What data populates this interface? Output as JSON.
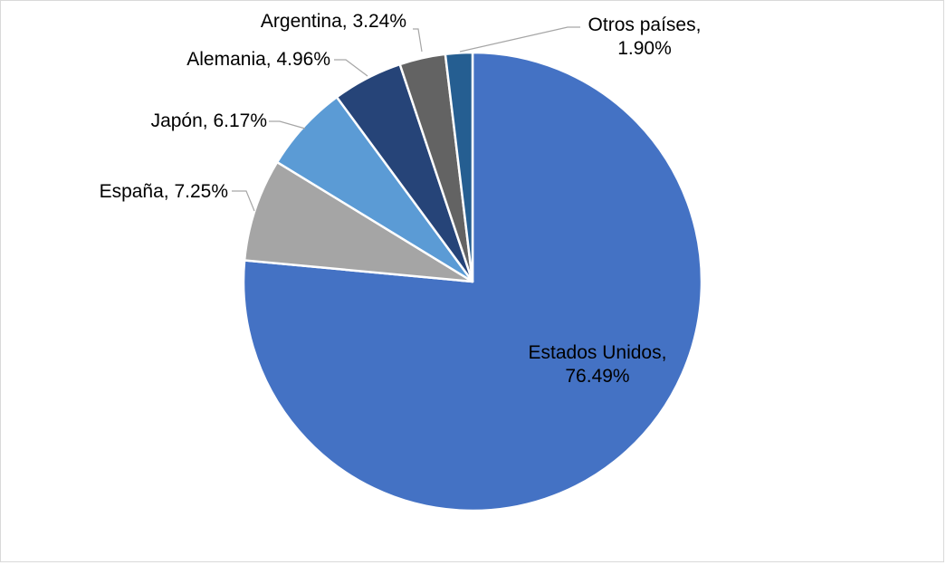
{
  "chart_data": {
    "type": "pie",
    "title": "",
    "legend": "none",
    "slices": [
      {
        "name": "Estados Unidos",
        "value": 76.49,
        "label_line1": "Estados Unidos,",
        "label_line2": "76.49%",
        "color": "#4472C4"
      },
      {
        "name": "España",
        "value": 7.25,
        "label_line1": "España, 7.25%",
        "label_line2": "",
        "color": "#A5A5A5"
      },
      {
        "name": "Japón",
        "value": 6.17,
        "label_line1": "Japón, 6.17%",
        "label_line2": "",
        "color": "#5B9BD5"
      },
      {
        "name": "Alemania",
        "value": 4.96,
        "label_line1": "Alemania, 4.96%",
        "label_line2": "",
        "color": "#264478"
      },
      {
        "name": "Argentina",
        "value": 3.24,
        "label_line1": "Argentina, 3.24%",
        "label_line2": "",
        "color": "#636363"
      },
      {
        "name": "Otros países",
        "value": 1.9,
        "label_line1": "Otros países,",
        "label_line2": "1.90%",
        "color": "#255E91"
      }
    ]
  }
}
